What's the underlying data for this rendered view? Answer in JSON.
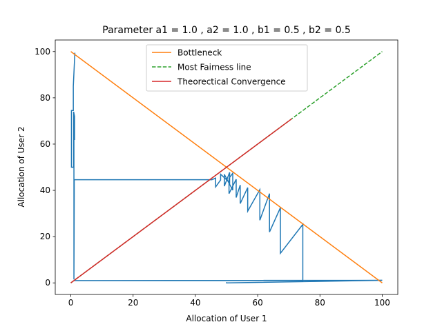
{
  "chart_data": {
    "type": "line",
    "title": "Parameter a1 = 1.0 , a2 = 1.0 , b1 = 0.5 , b2 = 0.5",
    "xlabel": "Allocation of User 1",
    "ylabel": "Allocation of User 2",
    "xlim": [
      -5,
      105
    ],
    "ylim": [
      -5,
      105
    ],
    "xticks": [
      0,
      20,
      40,
      60,
      80,
      100
    ],
    "yticks": [
      0,
      20,
      40,
      60,
      80,
      100
    ],
    "grid": false,
    "legend_position": "top-center",
    "legend": [
      "Bottleneck",
      "Most Fairness line",
      "Theorectical Convergence"
    ],
    "series": [
      {
        "name": "Bottleneck",
        "color": "#ff7f0e",
        "style": "solid",
        "x": [
          0,
          100
        ],
        "y": [
          100,
          0
        ]
      },
      {
        "name": "Most Fairness line",
        "color": "#2ca02c",
        "style": "dashed",
        "x": [
          0,
          100
        ],
        "y": [
          0,
          100
        ]
      },
      {
        "name": "Theorectical Convergence",
        "color": "#d62728",
        "style": "solid",
        "x": [
          0,
          71
        ],
        "y": [
          0,
          71
        ]
      },
      {
        "name": "",
        "color": "#1f77b4",
        "style": "solid",
        "x": [
          50,
          50,
          100,
          1,
          1,
          74.5,
          74.5,
          67.3,
          67.3,
          63.8,
          63.8,
          60.7,
          60.7,
          56.8,
          56.8,
          54.4,
          54.4,
          53.1,
          53.1,
          50.8,
          50.8,
          52,
          52,
          49.3,
          49.3,
          51,
          51,
          48.1,
          48.1,
          46.5,
          46.5,
          45.3,
          45.3,
          1.1,
          1.1,
          1,
          1,
          1.2,
          1.2,
          0.9,
          0.9,
          0.2,
          0.2,
          0.8,
          0.8,
          1.3
        ],
        "y": [
          0.3,
          0,
          1.1,
          1,
          1,
          1,
          25.3,
          12.8,
          32.5,
          22,
          38.6,
          27.1,
          40.3,
          31,
          41.2,
          34.3,
          42.3,
          36.9,
          44.8,
          38.6,
          45.2,
          47.4,
          40.1,
          46.9,
          41.8,
          47.8,
          43.3,
          47,
          44.5,
          41.5,
          45.3,
          44.6,
          44.6,
          44.6,
          39,
          1.5,
          62,
          62,
          72,
          74,
          50,
          50,
          74.5,
          74.5,
          85,
          99.5
        ]
      }
    ]
  }
}
